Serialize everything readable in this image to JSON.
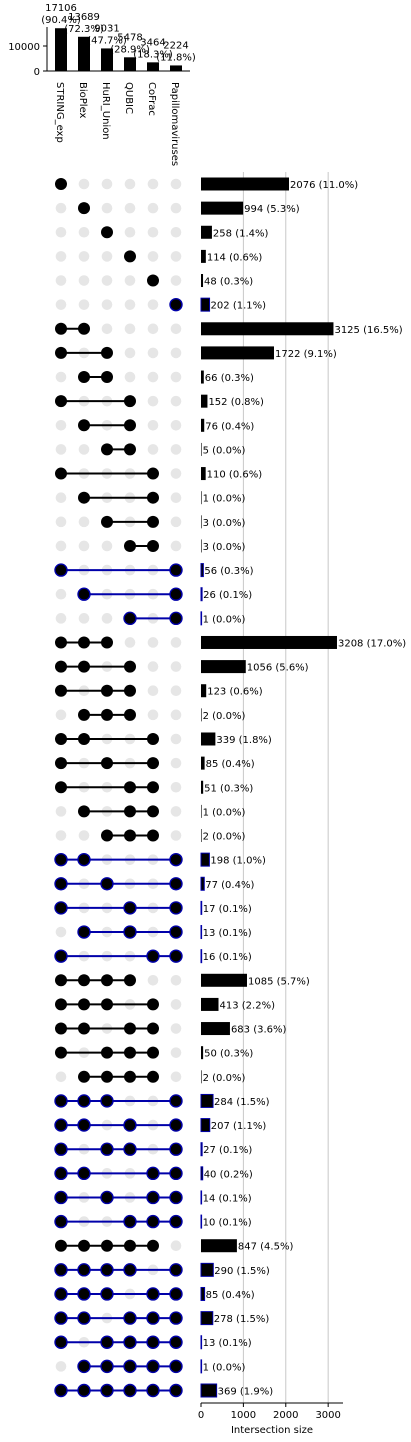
{
  "chart_data": {
    "type": "upset",
    "sets": [
      {
        "name": "STRING_exp",
        "size": 17106,
        "size_label": "17106\n(90.4%)"
      },
      {
        "name": "BioPlex",
        "size": 13689,
        "size_label": "13689\n(72.3%)"
      },
      {
        "name": "HuRI_Union",
        "size": 9031,
        "size_label": "9031\n(47.7%)"
      },
      {
        "name": "QUBIC",
        "size": 5478,
        "size_label": "5478\n(28.9%)"
      },
      {
        "name": "CoFrac",
        "size": 3464,
        "size_label": "3464\n(18.3%)"
      },
      {
        "name": "Papillomaviruses",
        "size": 2224,
        "size_label": "2224\n(11.8%)"
      }
    ],
    "set_size_axis": {
      "ticks": [
        0,
        10000
      ]
    },
    "intersection_axis": {
      "label": "Intersection size",
      "ticks": [
        0,
        1000,
        2000,
        3000
      ],
      "xlim": [
        0,
        3350
      ]
    },
    "colors": {
      "default": "#000000",
      "highlight": "#0000aa",
      "inactive": "#e6e6e6"
    },
    "intersections": [
      {
        "members": [
          0
        ],
        "value": 2076,
        "label": "2076 (11.0%)",
        "highlight": false
      },
      {
        "members": [
          1
        ],
        "value": 994,
        "label": "994 (5.3%)",
        "highlight": false
      },
      {
        "members": [
          2
        ],
        "value": 258,
        "label": "258 (1.4%)",
        "highlight": false
      },
      {
        "members": [
          3
        ],
        "value": 114,
        "label": "114 (0.6%)",
        "highlight": false
      },
      {
        "members": [
          4
        ],
        "value": 48,
        "label": "48 (0.3%)",
        "highlight": false
      },
      {
        "members": [
          5
        ],
        "value": 202,
        "label": "202 (1.1%)",
        "highlight": true
      },
      {
        "members": [
          0,
          1
        ],
        "value": 3125,
        "label": "3125 (16.5%)",
        "highlight": false
      },
      {
        "members": [
          0,
          2
        ],
        "value": 1722,
        "label": "1722 (9.1%)",
        "highlight": false
      },
      {
        "members": [
          1,
          2
        ],
        "value": 66,
        "label": "66 (0.3%)",
        "highlight": false
      },
      {
        "members": [
          0,
          3
        ],
        "value": 152,
        "label": "152 (0.8%)",
        "highlight": false
      },
      {
        "members": [
          1,
          3
        ],
        "value": 76,
        "label": "76 (0.4%)",
        "highlight": false
      },
      {
        "members": [
          2,
          3
        ],
        "value": 5,
        "label": "5 (0.0%)",
        "highlight": false
      },
      {
        "members": [
          0,
          4
        ],
        "value": 110,
        "label": "110 (0.6%)",
        "highlight": false
      },
      {
        "members": [
          1,
          4
        ],
        "value": 1,
        "label": "1 (0.0%)",
        "highlight": false
      },
      {
        "members": [
          2,
          4
        ],
        "value": 3,
        "label": "3 (0.0%)",
        "highlight": false
      },
      {
        "members": [
          3,
          4
        ],
        "value": 3,
        "label": "3 (0.0%)",
        "highlight": false
      },
      {
        "members": [
          0,
          5
        ],
        "value": 56,
        "label": "56 (0.3%)",
        "highlight": true
      },
      {
        "members": [
          1,
          5
        ],
        "value": 26,
        "label": "26 (0.1%)",
        "highlight": true
      },
      {
        "members": [
          3,
          5
        ],
        "value": 1,
        "label": "1 (0.0%)",
        "highlight": true
      },
      {
        "members": [
          0,
          1,
          2
        ],
        "value": 3208,
        "label": "3208 (17.0%)",
        "highlight": false
      },
      {
        "members": [
          0,
          1,
          3
        ],
        "value": 1056,
        "label": "1056 (5.6%)",
        "highlight": false
      },
      {
        "members": [
          0,
          2,
          3
        ],
        "value": 123,
        "label": "123 (0.6%)",
        "highlight": false
      },
      {
        "members": [
          1,
          2,
          3
        ],
        "value": 2,
        "label": "2 (0.0%)",
        "highlight": false
      },
      {
        "members": [
          0,
          1,
          4
        ],
        "value": 339,
        "label": "339 (1.8%)",
        "highlight": false
      },
      {
        "members": [
          0,
          2,
          4
        ],
        "value": 85,
        "label": "85 (0.4%)",
        "highlight": false
      },
      {
        "members": [
          0,
          3,
          4
        ],
        "value": 51,
        "label": "51 (0.3%)",
        "highlight": false
      },
      {
        "members": [
          1,
          3,
          4
        ],
        "value": 1,
        "label": "1 (0.0%)",
        "highlight": false
      },
      {
        "members": [
          2,
          3,
          4
        ],
        "value": 2,
        "label": "2 (0.0%)",
        "highlight": false
      },
      {
        "members": [
          0,
          1,
          5
        ],
        "value": 198,
        "label": "198 (1.0%)",
        "highlight": true
      },
      {
        "members": [
          0,
          2,
          5
        ],
        "value": 77,
        "label": "77 (0.4%)",
        "highlight": true
      },
      {
        "members": [
          0,
          3,
          5
        ],
        "value": 17,
        "label": "17 (0.1%)",
        "highlight": true
      },
      {
        "members": [
          1,
          3,
          5
        ],
        "value": 13,
        "label": "13 (0.1%)",
        "highlight": true
      },
      {
        "members": [
          0,
          4,
          5
        ],
        "value": 16,
        "label": "16 (0.1%)",
        "highlight": true
      },
      {
        "members": [
          0,
          1,
          2,
          3
        ],
        "value": 1085,
        "label": "1085 (5.7%)",
        "highlight": false
      },
      {
        "members": [
          0,
          1,
          2,
          4
        ],
        "value": 413,
        "label": "413 (2.2%)",
        "highlight": false
      },
      {
        "members": [
          0,
          1,
          3,
          4
        ],
        "value": 683,
        "label": "683 (3.6%)",
        "highlight": false
      },
      {
        "members": [
          0,
          2,
          3,
          4
        ],
        "value": 50,
        "label": "50 (0.3%)",
        "highlight": false
      },
      {
        "members": [
          1,
          2,
          3,
          4
        ],
        "value": 2,
        "label": "2 (0.0%)",
        "highlight": false
      },
      {
        "members": [
          0,
          1,
          2,
          5
        ],
        "value": 284,
        "label": "284 (1.5%)",
        "highlight": true
      },
      {
        "members": [
          0,
          1,
          3,
          5
        ],
        "value": 207,
        "label": "207 (1.1%)",
        "highlight": true
      },
      {
        "members": [
          0,
          2,
          3,
          5
        ],
        "value": 27,
        "label": "27 (0.1%)",
        "highlight": true
      },
      {
        "members": [
          0,
          1,
          4,
          5
        ],
        "value": 40,
        "label": "40 (0.2%)",
        "highlight": true
      },
      {
        "members": [
          0,
          2,
          4,
          5
        ],
        "value": 14,
        "label": "14 (0.1%)",
        "highlight": true
      },
      {
        "members": [
          0,
          3,
          4,
          5
        ],
        "value": 10,
        "label": "10 (0.1%)",
        "highlight": true
      },
      {
        "members": [
          0,
          1,
          2,
          3,
          4
        ],
        "value": 847,
        "label": "847 (4.5%)",
        "highlight": false
      },
      {
        "members": [
          0,
          1,
          2,
          3,
          5
        ],
        "value": 290,
        "label": "290 (1.5%)",
        "highlight": true
      },
      {
        "members": [
          0,
          1,
          2,
          4,
          5
        ],
        "value": 85,
        "label": "85 (0.4%)",
        "highlight": true
      },
      {
        "members": [
          0,
          1,
          3,
          4,
          5
        ],
        "value": 278,
        "label": "278 (1.5%)",
        "highlight": true
      },
      {
        "members": [
          0,
          2,
          3,
          4,
          5
        ],
        "value": 13,
        "label": "13 (0.1%)",
        "highlight": true
      },
      {
        "members": [
          1,
          2,
          3,
          4,
          5
        ],
        "value": 1,
        "label": "1 (0.0%)",
        "highlight": true
      },
      {
        "members": [
          0,
          1,
          2,
          3,
          4,
          5
        ],
        "value": 369,
        "label": "369 (1.9%)",
        "highlight": true
      }
    ]
  }
}
